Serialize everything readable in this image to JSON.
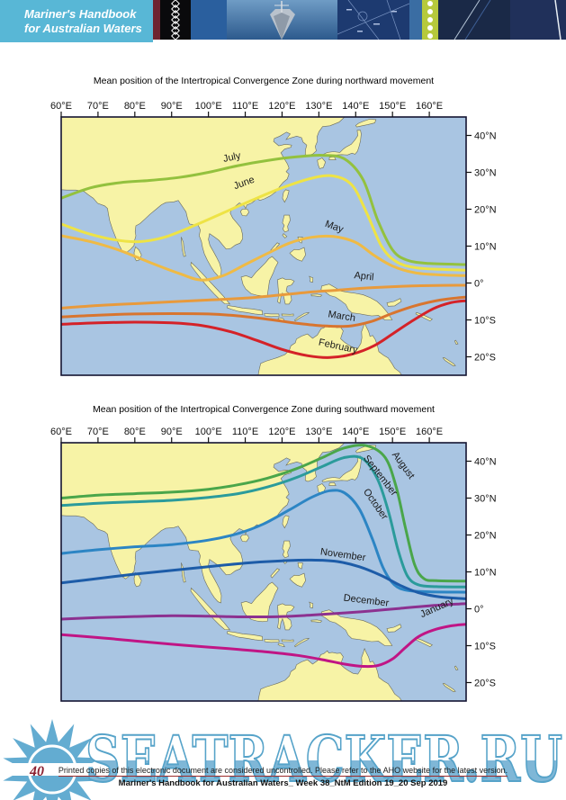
{
  "header": {
    "title_line1": "Mariner's Handbook",
    "title_line2": "for Australian Waters"
  },
  "map_style": {
    "sea_color": "#a9c5e2",
    "land_color": "#f7f3a6",
    "coast_color": "#6b6b5a",
    "frame_color": "#141432",
    "label_color": "#1a1a1a"
  },
  "chart_data": [
    {
      "type": "line",
      "title": "Mean position of the Intertropical Convergence Zone during northward movement",
      "x_ticks": [
        {
          "label": "60°E",
          "lon": 60
        },
        {
          "label": "70°E",
          "lon": 70
        },
        {
          "label": "80°E",
          "lon": 80
        },
        {
          "label": "90°E",
          "lon": 90
        },
        {
          "label": "100°E",
          "lon": 100
        },
        {
          "label": "110°E",
          "lon": 110
        },
        {
          "label": "120°E",
          "lon": 120
        },
        {
          "label": "130°E",
          "lon": 130
        },
        {
          "label": "140°E",
          "lon": 140
        },
        {
          "label": "150°E",
          "lon": 150
        },
        {
          "label": "160°E",
          "lon": 160
        }
      ],
      "y_ticks": [
        {
          "label": "40°N",
          "lat": 40
        },
        {
          "label": "30°N",
          "lat": 30
        },
        {
          "label": "20°N",
          "lat": 20
        },
        {
          "label": "10°N",
          "lat": 10
        },
        {
          "label": "0°",
          "lat": 0
        },
        {
          "label": "10°S",
          "lat": -10
        },
        {
          "label": "20°S",
          "lat": -20
        }
      ],
      "xlim_lon": [
        60,
        170
      ],
      "ylim_lat": [
        -25,
        45
      ],
      "series": [
        {
          "name": "July",
          "color": "#93c13e",
          "label_pos": {
            "lon": 104.2,
            "lat": 32.8,
            "rot": -12
          },
          "points_lon_lat": [
            [
              60,
              23
            ],
            [
              68,
              25.8
            ],
            [
              76,
              27.2
            ],
            [
              84,
              27.8
            ],
            [
              92,
              28.6
            ],
            [
              100,
              30
            ],
            [
              108,
              31.8
            ],
            [
              116,
              33.2
            ],
            [
              124,
              34.2
            ],
            [
              131,
              34.6
            ],
            [
              137,
              33.6
            ],
            [
              142,
              28
            ],
            [
              146,
              17
            ],
            [
              150,
              9
            ],
            [
              154,
              6.2
            ],
            [
              160,
              5.3
            ],
            [
              170,
              5
            ]
          ]
        },
        {
          "name": "June",
          "color": "#eee345",
          "label_pos": {
            "lon": 107.2,
            "lat": 25.4,
            "rot": -20
          },
          "points_lon_lat": [
            [
              60,
              16
            ],
            [
              67,
              13.5
            ],
            [
              74,
              11.8
            ],
            [
              81,
              11.2
            ],
            [
              88,
              12.4
            ],
            [
              96,
              15.5
            ],
            [
              104,
              19
            ],
            [
              112,
              22.5
            ],
            [
              120,
              25.8
            ],
            [
              128,
              28.4
            ],
            [
              134,
              29
            ],
            [
              139,
              26.5
            ],
            [
              143,
              19
            ],
            [
              147,
              10
            ],
            [
              151,
              5.8
            ],
            [
              156,
              4.2
            ],
            [
              163,
              3.7
            ],
            [
              170,
              3.5
            ]
          ]
        },
        {
          "name": "May",
          "color": "#efba45",
          "label_pos": {
            "lon": 131.5,
            "lat": 15.4,
            "rot": 20
          },
          "points_lon_lat": [
            [
              60,
              12.8
            ],
            [
              68,
              11.2
            ],
            [
              76,
              8.8
            ],
            [
              84,
              5.6
            ],
            [
              92,
              2.6
            ],
            [
              98,
              0.8
            ],
            [
              104,
              2
            ],
            [
              110,
              5
            ],
            [
              116,
              8
            ],
            [
              122,
              10.8
            ],
            [
              128,
              12.4
            ],
            [
              134,
              12.6
            ],
            [
              140,
              11
            ],
            [
              145,
              7.5
            ],
            [
              150,
              4.6
            ],
            [
              156,
              2.8
            ],
            [
              163,
              2.2
            ],
            [
              170,
              2
            ]
          ]
        },
        {
          "name": "April",
          "color": "#e89a3c",
          "label_pos": {
            "lon": 139.5,
            "lat": 1.3,
            "rot": 6
          },
          "points_lon_lat": [
            [
              60,
              -6.8
            ],
            [
              70,
              -6.1
            ],
            [
              80,
              -5.6
            ],
            [
              90,
              -5.1
            ],
            [
              100,
              -4.6
            ],
            [
              110,
              -4.1
            ],
            [
              118,
              -3.4
            ],
            [
              126,
              -2.6
            ],
            [
              134,
              -2
            ],
            [
              142,
              -1.4
            ],
            [
              150,
              -1
            ],
            [
              160,
              -0.7
            ],
            [
              170,
              -0.6
            ]
          ]
        },
        {
          "name": "March",
          "color": "#d8752f",
          "label_pos": {
            "lon": 132.4,
            "lat": -9.2,
            "rot": 9
          },
          "points_lon_lat": [
            [
              60,
              -9.2
            ],
            [
              70,
              -8.7
            ],
            [
              80,
              -8.4
            ],
            [
              90,
              -8.3
            ],
            [
              100,
              -8.4
            ],
            [
              108,
              -8.9
            ],
            [
              116,
              -9.8
            ],
            [
              124,
              -10.9
            ],
            [
              131,
              -11.6
            ],
            [
              138,
              -11.7
            ],
            [
              144,
              -10.5
            ],
            [
              150,
              -8.2
            ],
            [
              156,
              -6.2
            ],
            [
              163,
              -4.6
            ],
            [
              170,
              -3.8
            ]
          ]
        },
        {
          "name": "February",
          "color": "#d42228",
          "label_pos": {
            "lon": 129.8,
            "lat": -16.8,
            "rot": 12
          },
          "points_lon_lat": [
            [
              60,
              -11.2
            ],
            [
              70,
              -10.8
            ],
            [
              80,
              -10.6
            ],
            [
              90,
              -10.8
            ],
            [
              98,
              -11.5
            ],
            [
              106,
              -13.2
            ],
            [
              113,
              -15.5
            ],
            [
              120,
              -18
            ],
            [
              127,
              -19.7
            ],
            [
              133,
              -20.2
            ],
            [
              139,
              -19.3
            ],
            [
              145,
              -17
            ],
            [
              150,
              -13.8
            ],
            [
              155,
              -10.5
            ],
            [
              161,
              -7
            ],
            [
              166,
              -5.3
            ],
            [
              170,
              -4.8
            ]
          ]
        }
      ]
    },
    {
      "type": "line",
      "title": "Mean position of the Intertropical Convergence Zone during southward movement",
      "x_ticks": [
        {
          "label": "60°E",
          "lon": 60
        },
        {
          "label": "70°E",
          "lon": 70
        },
        {
          "label": "80°E",
          "lon": 80
        },
        {
          "label": "90°E",
          "lon": 90
        },
        {
          "label": "100°E",
          "lon": 100
        },
        {
          "label": "110°E",
          "lon": 110
        },
        {
          "label": "120°E",
          "lon": 120
        },
        {
          "label": "130°E",
          "lon": 130
        },
        {
          "label": "140°E",
          "lon": 140
        },
        {
          "label": "150°E",
          "lon": 150
        },
        {
          "label": "160°E",
          "lon": 160
        }
      ],
      "y_ticks": [
        {
          "label": "40°N",
          "lat": 40
        },
        {
          "label": "30°N",
          "lat": 30
        },
        {
          "label": "20°N",
          "lat": 20
        },
        {
          "label": "10°N",
          "lat": 10
        },
        {
          "label": "0°",
          "lat": 0
        },
        {
          "label": "10°S",
          "lat": -10
        },
        {
          "label": "20°S",
          "lat": -20
        }
      ],
      "xlim_lon": [
        60,
        170
      ],
      "ylim_lat": [
        -25,
        45
      ],
      "series": [
        {
          "name": "August",
          "color": "#4aa64a",
          "label_pos": {
            "lon": 149.8,
            "lat": 41.8,
            "rot": 54
          },
          "points_lon_lat": [
            [
              60,
              30
            ],
            [
              70,
              30.8
            ],
            [
              80,
              31.2
            ],
            [
              90,
              31.6
            ],
            [
              100,
              32.4
            ],
            [
              108,
              33.6
            ],
            [
              116,
              35.4
            ],
            [
              124,
              38
            ],
            [
              131,
              41
            ],
            [
              137,
              43.6
            ],
            [
              143,
              44.2
            ],
            [
              148,
              41
            ],
            [
              151,
              33
            ],
            [
              153.5,
              22
            ],
            [
              156,
              12
            ],
            [
              158.5,
              8.2
            ],
            [
              162,
              7.6
            ],
            [
              170,
              7.5
            ]
          ]
        },
        {
          "name": "September",
          "color": "#2b9b9b",
          "label_pos": {
            "lon": 142,
            "lat": 40.8,
            "rot": 52
          },
          "points_lon_lat": [
            [
              60,
              28
            ],
            [
              70,
              28.6
            ],
            [
              80,
              29
            ],
            [
              90,
              29.4
            ],
            [
              100,
              30.2
            ],
            [
              108,
              31.2
            ],
            [
              116,
              33
            ],
            [
              124,
              35.6
            ],
            [
              131,
              38.6
            ],
            [
              137,
              41
            ],
            [
              142,
              40.6
            ],
            [
              146,
              35
            ],
            [
              149,
              26
            ],
            [
              151.5,
              16
            ],
            [
              154,
              9
            ],
            [
              157,
              6.5
            ],
            [
              162,
              6
            ],
            [
              170,
              5.9
            ]
          ]
        },
        {
          "name": "October",
          "color": "#2c85c4",
          "label_pos": {
            "lon": 142,
            "lat": 31.8,
            "rot": 55
          },
          "points_lon_lat": [
            [
              60,
              15
            ],
            [
              70,
              16
            ],
            [
              80,
              16.8
            ],
            [
              90,
              17.4
            ],
            [
              100,
              18.6
            ],
            [
              108,
              20.4
            ],
            [
              115,
              23
            ],
            [
              122,
              26.8
            ],
            [
              128,
              30.2
            ],
            [
              133,
              32
            ],
            [
              137,
              31.4
            ],
            [
              141,
              27
            ],
            [
              144.5,
              19
            ],
            [
              147.5,
              11
            ],
            [
              150.5,
              6.5
            ],
            [
              154,
              5
            ],
            [
              160,
              4.6
            ],
            [
              170,
              4.5
            ]
          ]
        },
        {
          "name": "November",
          "color": "#1d5ca8",
          "label_pos": {
            "lon": 130.3,
            "lat": 14.7,
            "rot": 8
          },
          "points_lon_lat": [
            [
              60,
              7
            ],
            [
              70,
              8.2
            ],
            [
              80,
              9.4
            ],
            [
              90,
              10.4
            ],
            [
              100,
              11.4
            ],
            [
              110,
              12.4
            ],
            [
              120,
              13
            ],
            [
              128,
              13.2
            ],
            [
              135,
              12.8
            ],
            [
              141,
              11.4
            ],
            [
              147,
              9
            ],
            [
              152,
              6.4
            ],
            [
              157,
              4.4
            ],
            [
              163,
              3.2
            ],
            [
              170,
              2.7
            ]
          ]
        },
        {
          "name": "December",
          "color": "#8c3190",
          "label_pos": {
            "lon": 136.6,
            "lat": 2.2,
            "rot": 7
          },
          "points_lon_lat": [
            [
              60,
              -2.8
            ],
            [
              70,
              -2.4
            ],
            [
              80,
              -2.1
            ],
            [
              90,
              -1.9
            ],
            [
              100,
              -2
            ],
            [
              110,
              -2.2
            ],
            [
              120,
              -2.1
            ],
            [
              128,
              -1.7
            ],
            [
              136,
              -1.2
            ],
            [
              144,
              -0.6
            ],
            [
              152,
              0.1
            ],
            [
              160,
              0.8
            ],
            [
              170,
              1.4
            ]
          ]
        },
        {
          "name": "January",
          "color": "#c01585",
          "label_pos": {
            "lon": 158,
            "lat": -2.4,
            "rot": -24
          },
          "points_lon_lat": [
            [
              60,
              -7
            ],
            [
              70,
              -7.8
            ],
            [
              80,
              -8.7
            ],
            [
              90,
              -9.6
            ],
            [
              100,
              -10.4
            ],
            [
              108,
              -11
            ],
            [
              116,
              -11.7
            ],
            [
              124,
              -12.6
            ],
            [
              131,
              -13.8
            ],
            [
              137,
              -15
            ],
            [
              142,
              -15.6
            ],
            [
              146,
              -15.4
            ],
            [
              150,
              -13.6
            ],
            [
              153.5,
              -10.5
            ],
            [
              157,
              -7.6
            ],
            [
              161,
              -5.8
            ],
            [
              166,
              -4.6
            ],
            [
              170,
              -4.2
            ]
          ]
        }
      ]
    }
  ],
  "footer": {
    "watermark": "SEATRACKER.RU",
    "line1": "Printed copies of this electronic document are considered uncontrolled. Please refer to the AHO website for the latest version.",
    "line2": "Mariner's Handbook for Australian Waters_ Week 38_NtM Edition 19_20 Sep 2019",
    "page_number": "40"
  }
}
